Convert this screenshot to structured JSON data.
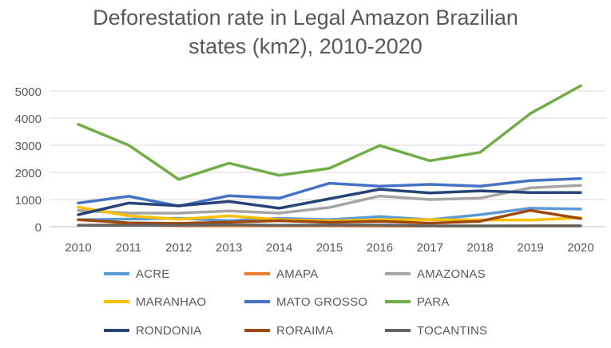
{
  "chart_data": {
    "type": "line",
    "title_lines": [
      "Deforestation rate in Legal Amazon Brazilian",
      "states (km2), 2010-2020"
    ],
    "x": [
      "2010",
      "2011",
      "2012",
      "2013",
      "2014",
      "2015",
      "2016",
      "2017",
      "2018",
      "2019",
      "2020"
    ],
    "ylim": [
      0,
      5000
    ],
    "yticks": [
      "0",
      "1000",
      "2000",
      "3000",
      "4000",
      "5000"
    ],
    "grid": true,
    "legend_position": "bottom",
    "series": [
      {
        "name": "ACRE",
        "color": "#5B9BD5",
        "values": [
          260,
          280,
          310,
          220,
          310,
          260,
          370,
          260,
          440,
          680,
          650
        ]
      },
      {
        "name": "AMAPA",
        "color": "#ED7D31",
        "values": [
          50,
          70,
          30,
          30,
          30,
          30,
          20,
          20,
          20,
          30,
          30
        ]
      },
      {
        "name": "AMAZONAS",
        "color": "#A5A5A5",
        "values": [
          600,
          500,
          500,
          580,
          500,
          710,
          1130,
          1000,
          1050,
          1430,
          1520
        ]
      },
      {
        "name": "MARANHAO",
        "color": "#FFC000",
        "values": [
          720,
          400,
          270,
          400,
          260,
          210,
          260,
          260,
          250,
          240,
          330
        ]
      },
      {
        "name": "MATO GROSSO",
        "color": "#4472C4",
        "values": [
          870,
          1120,
          760,
          1140,
          1050,
          1600,
          1490,
          1560,
          1490,
          1700,
          1770
        ]
      },
      {
        "name": "PARA",
        "color": "#70AD47",
        "values": [
          3770,
          3010,
          1740,
          2340,
          1890,
          2150,
          2990,
          2430,
          2740,
          4170,
          5190
        ]
      },
      {
        "name": "RONDONIA",
        "color": "#264478",
        "values": [
          440,
          870,
          770,
          930,
          680,
          1030,
          1380,
          1240,
          1320,
          1260,
          1260
        ]
      },
      {
        "name": "RORAIMA",
        "color": "#9E480E",
        "values": [
          260,
          140,
          120,
          170,
          220,
          160,
          200,
          130,
          200,
          600,
          300
        ]
      },
      {
        "name": "TOCANTINS",
        "color": "#636363",
        "values": [
          50,
          50,
          50,
          70,
          50,
          60,
          60,
          30,
          30,
          30,
          30
        ]
      }
    ]
  }
}
